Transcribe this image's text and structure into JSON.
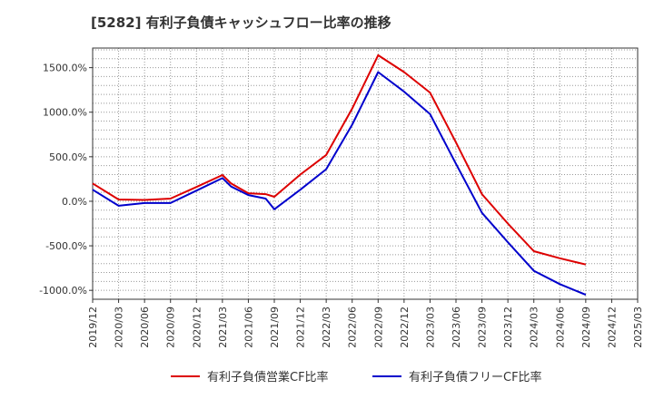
{
  "title": "[5282]  有利子負債キャッシュフロー比率の推移",
  "chart_data": {
    "type": "line",
    "x": [
      "2019/12",
      "2020/03",
      "2020/06",
      "2020/09",
      "2020/12",
      "2021/03",
      "2021/06",
      "2021/09",
      "2021/12",
      "2022/03",
      "2022/06",
      "2022/09",
      "2022/12",
      "2023/03",
      "2023/06",
      "2023/09",
      "2023/12",
      "2024/03",
      "2024/06",
      "2024/09",
      "2024/12",
      "2025/03"
    ],
    "ylim": [
      -1100,
      1720
    ],
    "yticks": [
      -1000,
      -500,
      0,
      500,
      1000,
      1500
    ],
    "ytick_labels": [
      "-1000.0%",
      "-500.0%",
      "0.0%",
      "500.0%",
      "1000.0%",
      "1500.0%"
    ],
    "grid": true,
    "legend_position": "bottom",
    "series": [
      {
        "name": "有利子負債営業CF比率",
        "color": "#dd0000",
        "points": [
          [
            "2019/12",
            200
          ],
          [
            "2020/03",
            20
          ],
          [
            "2020/06",
            15
          ],
          [
            "2020/09",
            30
          ],
          [
            "2020/12",
            160
          ],
          [
            "2021/03",
            295
          ],
          [
            "2021/04",
            200
          ],
          [
            "2021/06",
            90
          ],
          [
            "2021/08",
            80
          ],
          [
            "2021/09",
            50
          ],
          [
            "2021/12",
            300
          ],
          [
            "2022/03",
            520
          ],
          [
            "2022/06",
            1040
          ],
          [
            "2022/09",
            1640
          ],
          [
            "2022/12",
            1450
          ],
          [
            "2023/03",
            1220
          ],
          [
            "2023/06",
            660
          ],
          [
            "2023/09",
            80
          ],
          [
            "2023/12",
            -250
          ],
          [
            "2024/03",
            -560
          ],
          [
            "2024/06",
            -640
          ],
          [
            "2024/09",
            -710
          ]
        ]
      },
      {
        "name": "有利子負債フリーCF比率",
        "color": "#0000cc",
        "points": [
          [
            "2019/12",
            130
          ],
          [
            "2020/03",
            -50
          ],
          [
            "2020/06",
            -20
          ],
          [
            "2020/09",
            -20
          ],
          [
            "2020/12",
            120
          ],
          [
            "2021/03",
            260
          ],
          [
            "2021/04",
            165
          ],
          [
            "2021/06",
            70
          ],
          [
            "2021/08",
            30
          ],
          [
            "2021/09",
            -90
          ],
          [
            "2021/12",
            130
          ],
          [
            "2022/03",
            360
          ],
          [
            "2022/06",
            860
          ],
          [
            "2022/09",
            1450
          ],
          [
            "2022/12",
            1230
          ],
          [
            "2023/03",
            980
          ],
          [
            "2023/06",
            420
          ],
          [
            "2023/09",
            -130
          ],
          [
            "2023/12",
            -460
          ],
          [
            "2024/03",
            -780
          ],
          [
            "2024/06",
            -930
          ],
          [
            "2024/09",
            -1050
          ]
        ]
      }
    ]
  }
}
